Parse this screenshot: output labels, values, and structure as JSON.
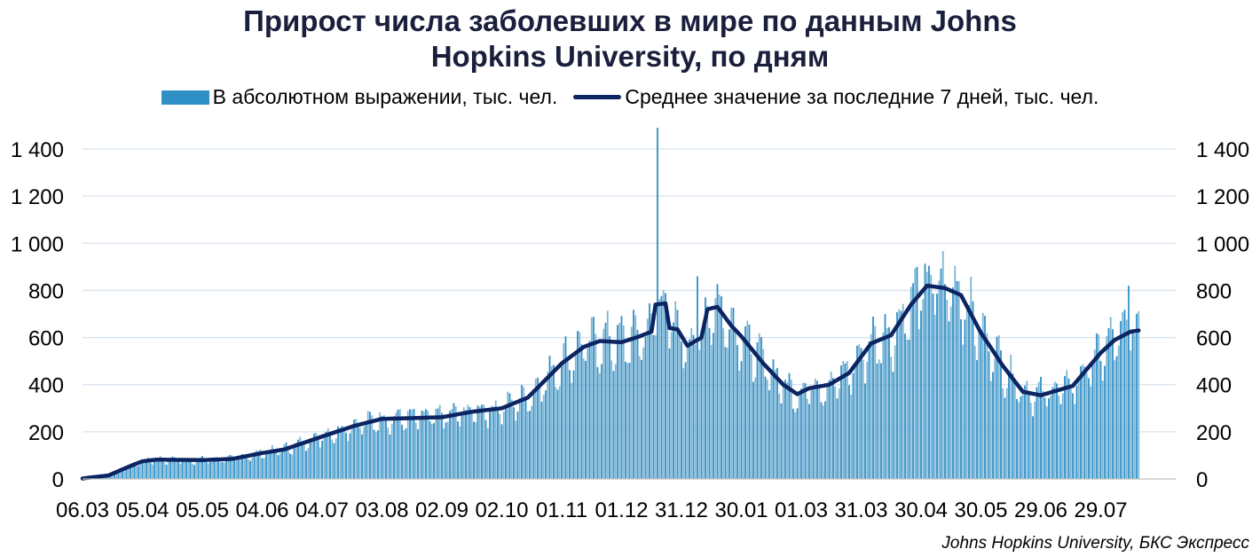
{
  "chart_data": {
    "type": "bar",
    "title_line1": "Прирост числа заболевших в мире по данным Johns",
    "title_line2": "Hopkins University, по дням",
    "series": [
      {
        "name": "В абсолютном выражении, тыс. чел.",
        "type": "bar",
        "color": "#2f90c6"
      },
      {
        "name": "Среднее значение за последние 7 дней, тыс. чел.",
        "type": "line",
        "color": "#0c2461"
      }
    ],
    "x_tick_labels": [
      "06.03",
      "05.04",
      "05.05",
      "04.06",
      "04.07",
      "03.08",
      "02.09",
      "02.10",
      "01.11",
      "01.12",
      "31.12",
      "30.01",
      "01.03",
      "31.03",
      "30.04",
      "30.05",
      "29.06",
      "29.07"
    ],
    "ylim": [
      0,
      1400
    ],
    "y_ticks": [
      0,
      200,
      400,
      600,
      800,
      1000,
      1200,
      1400
    ],
    "y_tick_labels": [
      "0",
      "200",
      "400",
      "600",
      "800",
      "1 000",
      "1 200",
      "1 400"
    ],
    "grid": true,
    "legend_position": "top",
    "moving_average_points": [
      {
        "x": "06.03",
        "y": 2
      },
      {
        "x": "19.03",
        "y": 15
      },
      {
        "x": "30.03",
        "y": 55
      },
      {
        "x": "05.04",
        "y": 75
      },
      {
        "x": "12.04",
        "y": 82
      },
      {
        "x": "05.05",
        "y": 80
      },
      {
        "x": "20.05",
        "y": 85
      },
      {
        "x": "04.06",
        "y": 110
      },
      {
        "x": "15.06",
        "y": 125
      },
      {
        "x": "04.07",
        "y": 180
      },
      {
        "x": "20.07",
        "y": 225
      },
      {
        "x": "03.08",
        "y": 255
      },
      {
        "x": "18.08",
        "y": 258
      },
      {
        "x": "02.09",
        "y": 262
      },
      {
        "x": "17.09",
        "y": 285
      },
      {
        "x": "02.10",
        "y": 300
      },
      {
        "x": "15.10",
        "y": 345
      },
      {
        "x": "25.10",
        "y": 430
      },
      {
        "x": "01.11",
        "y": 490
      },
      {
        "x": "12.11",
        "y": 560
      },
      {
        "x": "20.11",
        "y": 585
      },
      {
        "x": "01.12",
        "y": 580
      },
      {
        "x": "10.12",
        "y": 605
      },
      {
        "x": "16.12",
        "y": 625
      },
      {
        "x": "18.12",
        "y": 740
      },
      {
        "x": "23.12",
        "y": 745
      },
      {
        "x": "25.12",
        "y": 640
      },
      {
        "x": "29.12",
        "y": 635
      },
      {
        "x": "03.01",
        "y": 565
      },
      {
        "x": "10.01",
        "y": 600
      },
      {
        "x": "13.01",
        "y": 720
      },
      {
        "x": "18.01",
        "y": 730
      },
      {
        "x": "25.01",
        "y": 650
      },
      {
        "x": "30.01",
        "y": 605
      },
      {
        "x": "10.02",
        "y": 490
      },
      {
        "x": "20.02",
        "y": 400
      },
      {
        "x": "27.02",
        "y": 360
      },
      {
        "x": "05.03",
        "y": 385
      },
      {
        "x": "15.03",
        "y": 400
      },
      {
        "x": "25.03",
        "y": 450
      },
      {
        "x": "05.04",
        "y": 575
      },
      {
        "x": "15.04",
        "y": 610
      },
      {
        "x": "25.04",
        "y": 740
      },
      {
        "x": "03.05",
        "y": 820
      },
      {
        "x": "12.05",
        "y": 810
      },
      {
        "x": "20.05",
        "y": 780
      },
      {
        "x": "30.05",
        "y": 620
      },
      {
        "x": "10.06",
        "y": 480
      },
      {
        "x": "20.06",
        "y": 370
      },
      {
        "x": "29.06",
        "y": 355
      },
      {
        "x": "05.07",
        "y": 370
      },
      {
        "x": "15.07",
        "y": 395
      },
      {
        "x": "29.07",
        "y": 535
      },
      {
        "x": "05.08",
        "y": 590
      },
      {
        "x": "13.08",
        "y": 625
      },
      {
        "x": "17.08",
        "y": 630
      }
    ],
    "bar_peaks": [
      {
        "x": "19.12",
        "y": 1490
      },
      {
        "x": "08.01",
        "y": 860
      },
      {
        "x": "28.04",
        "y": 900
      },
      {
        "x": "12.08",
        "y": 820
      }
    ]
  },
  "source": "Johns Hopkins University, БКС Экспресс"
}
